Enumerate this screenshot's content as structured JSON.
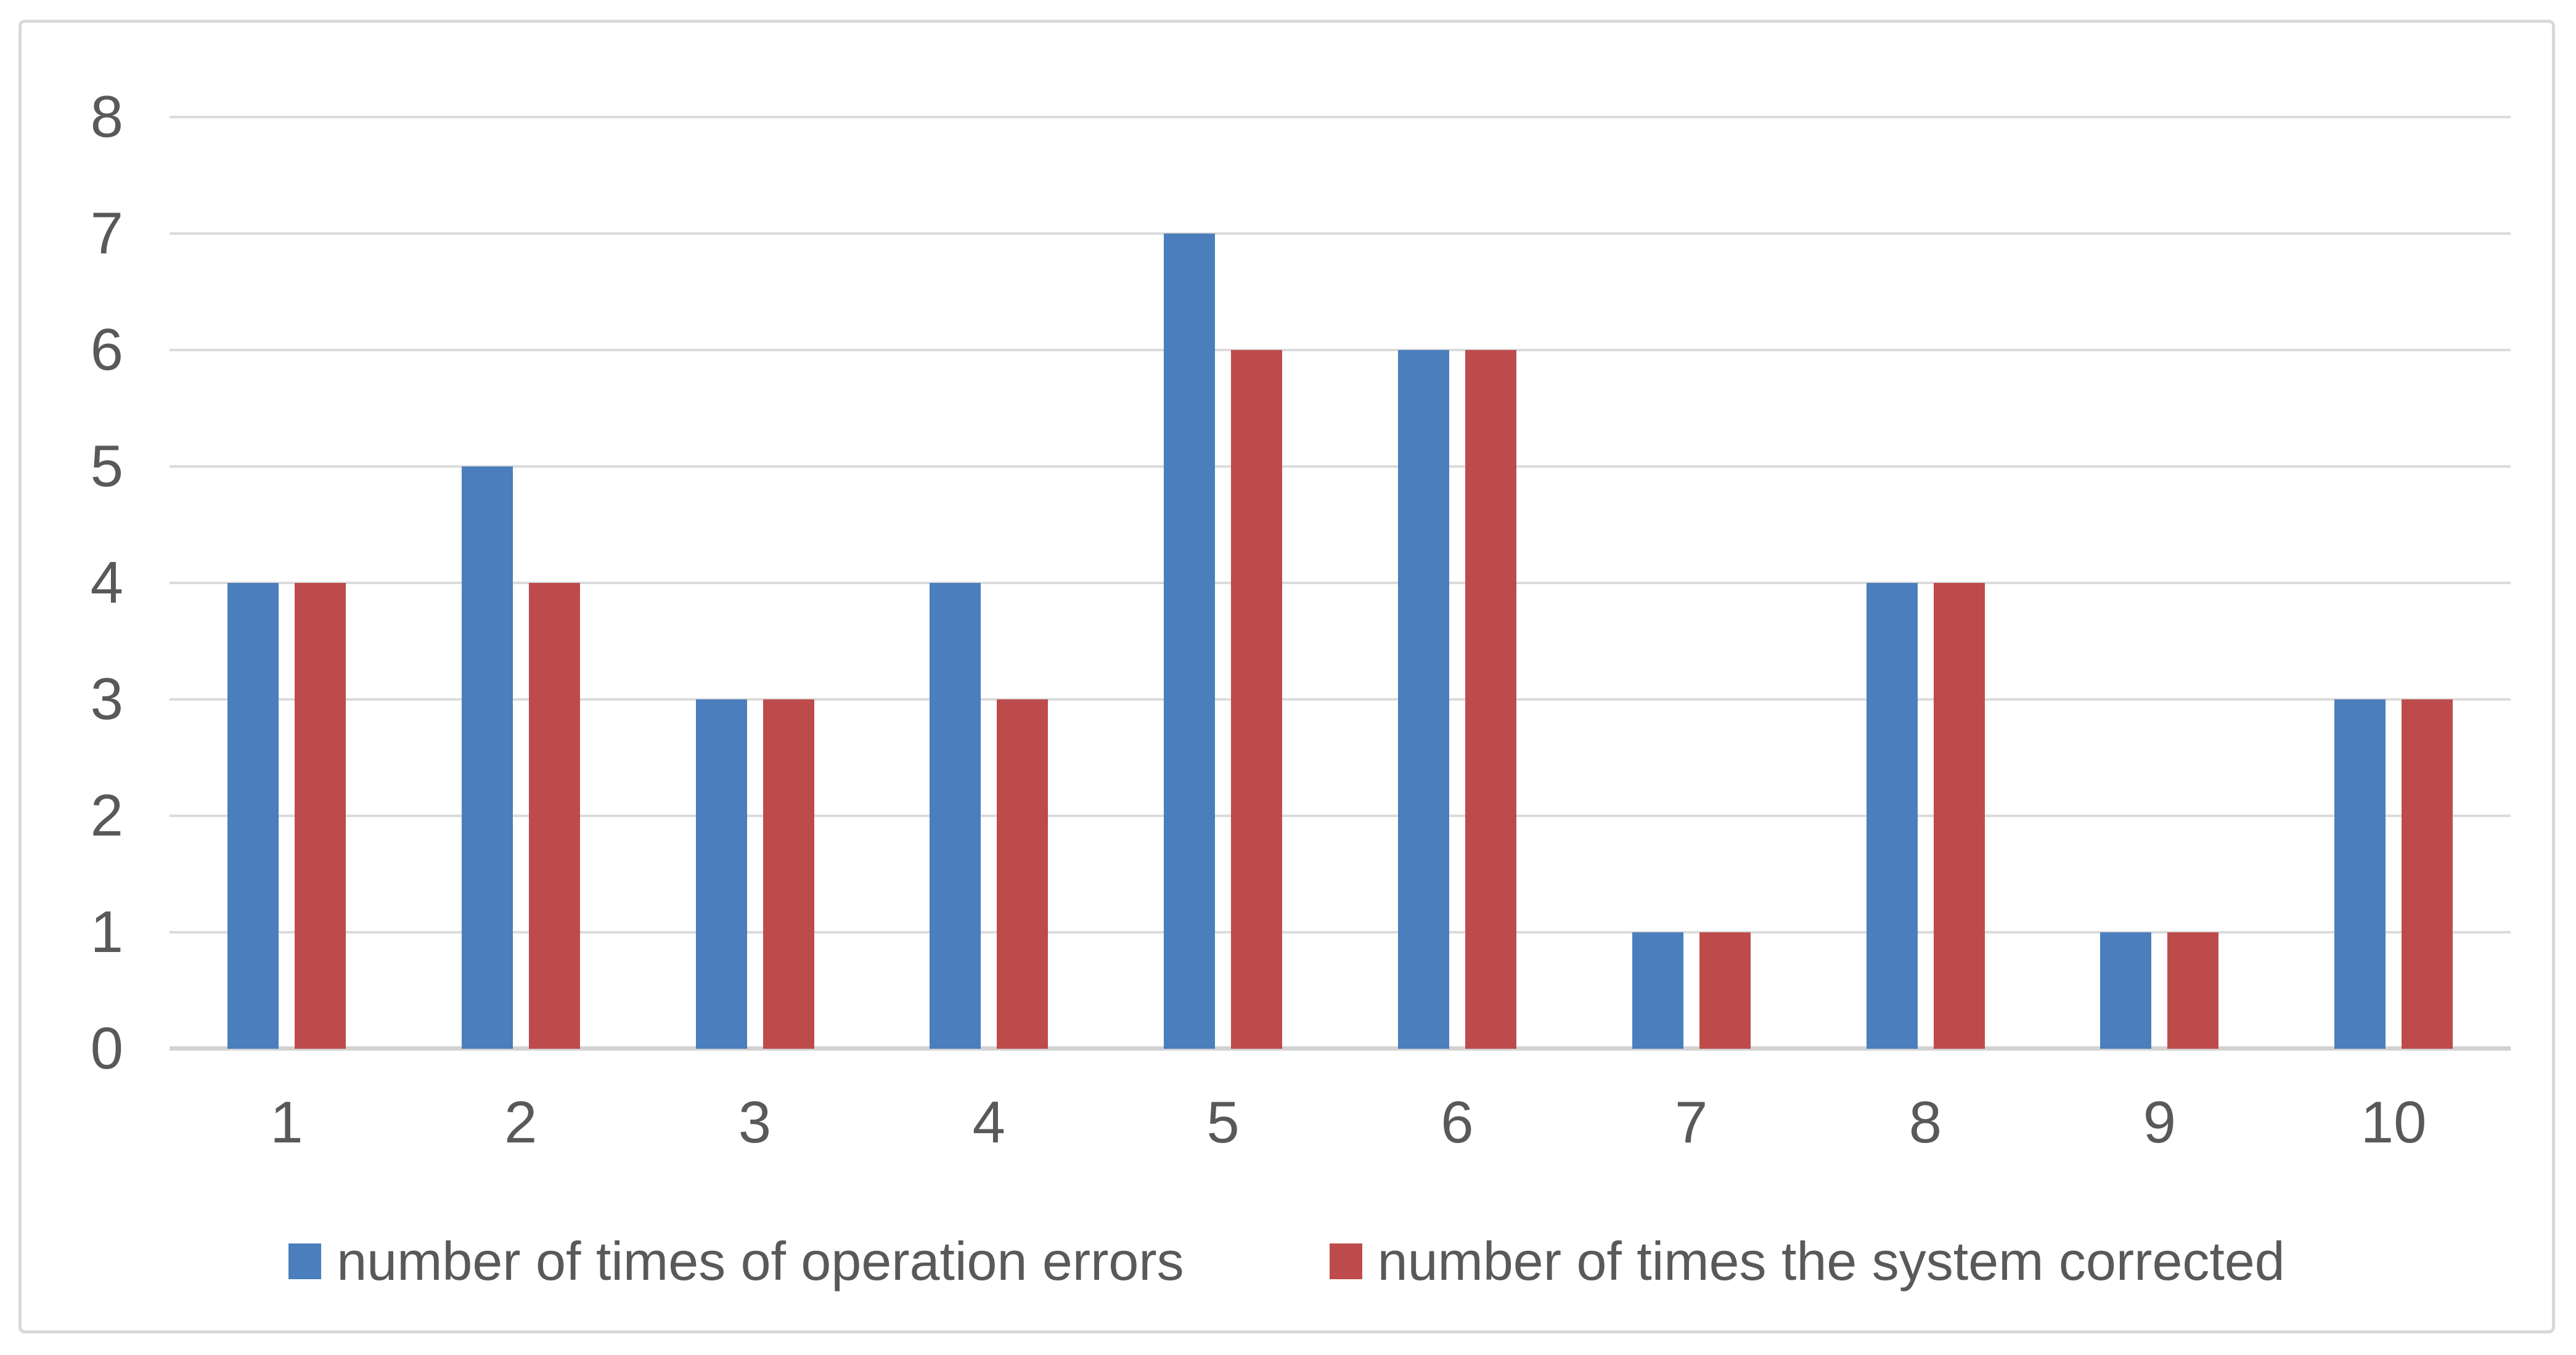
{
  "chart_data": {
    "type": "bar",
    "title": "",
    "xlabel": "",
    "ylabel": "",
    "categories": [
      "1",
      "2",
      "3",
      "4",
      "5",
      "6",
      "7",
      "8",
      "9",
      "10"
    ],
    "series": [
      {
        "name": "number of times of operation errors",
        "color": "#4A7EBC",
        "values": [
          4,
          5,
          3,
          4,
          7,
          6,
          1,
          4,
          1,
          3
        ]
      },
      {
        "name": "number of times the system corrected",
        "color": "#BE4B4C",
        "values": [
          4,
          4,
          3,
          3,
          6,
          6,
          1,
          4,
          1,
          3
        ]
      }
    ],
    "ylim": [
      0,
      8
    ],
    "y_ticks": [
      "0",
      "1",
      "2",
      "3",
      "4",
      "5",
      "6",
      "7",
      "8"
    ],
    "grid": "horizontal",
    "legend_position": "bottom",
    "colors": {
      "axis_text": "#595959",
      "gridline": "#DBDBDB",
      "axis_line": "#D2D2D2",
      "frame_border": "#D9D9D9",
      "background": "#FFFFFF"
    }
  }
}
